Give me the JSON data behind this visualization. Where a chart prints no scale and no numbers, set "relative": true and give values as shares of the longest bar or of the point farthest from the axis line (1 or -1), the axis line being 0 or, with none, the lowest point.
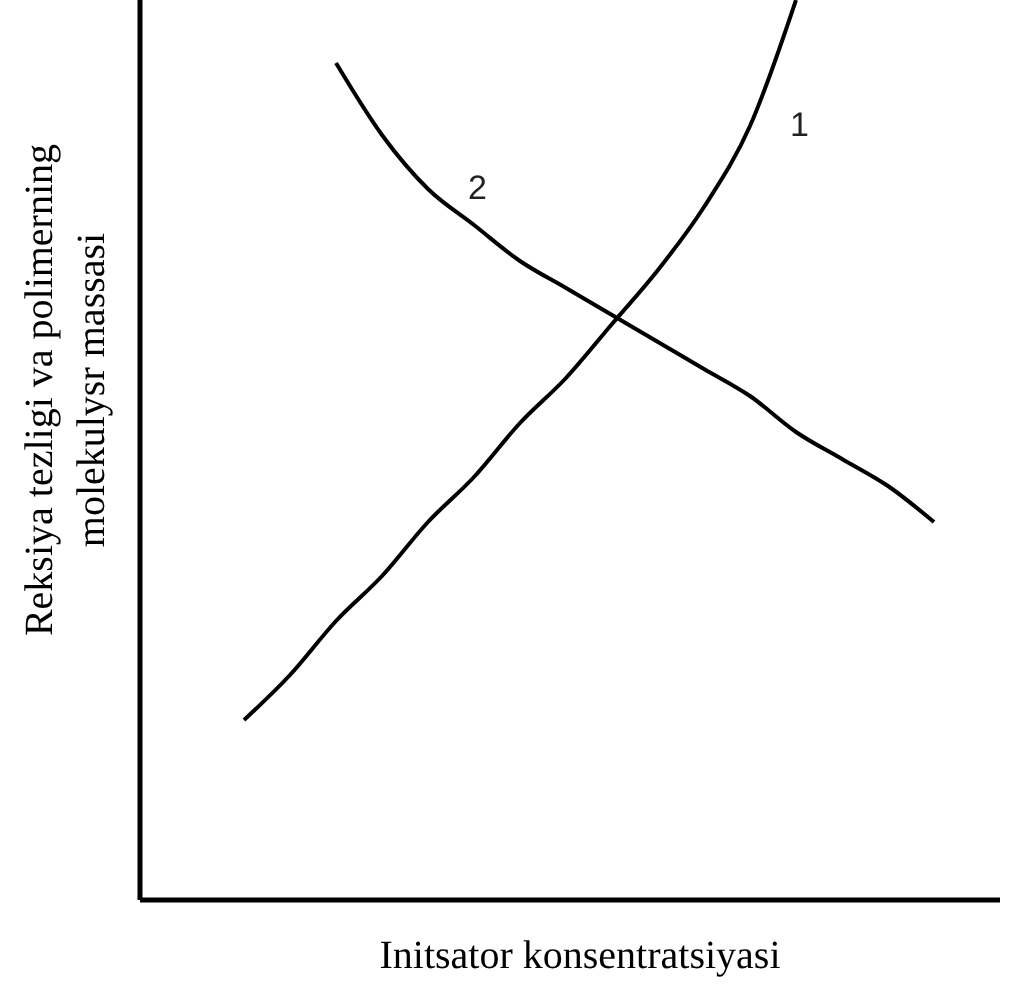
{
  "chart_data": {
    "type": "line",
    "relative": true,
    "xlabel": "Initsator konsentratsiyasi",
    "ylabel": "Reksiya tezligi va polimerning\nmolekulysr massasi",
    "marker": "none",
    "line_style": "solid",
    "categories": [
      null,
      null,
      null,
      null,
      null,
      null,
      null,
      null,
      null,
      null,
      null,
      null,
      null,
      null,
      null,
      null,
      null
    ],
    "series": [
      {
        "name": "1",
        "color": "#000000",
        "values": [
          0.2,
          0.25,
          0.31,
          0.36,
          0.42,
          0.47,
          0.53,
          0.58,
          0.64,
          0.7,
          0.77,
          0.86,
          1,
          null,
          null,
          null,
          null
        ]
      },
      {
        "name": "2",
        "color": "#000000",
        "values": [
          null,
          null,
          0.93,
          0.85,
          0.79,
          0.75,
          0.71,
          0.68,
          0.65,
          0.62,
          0.59,
          0.56,
          0.52,
          0.49,
          0.46,
          0.42,
          null
        ]
      }
    ]
  }
}
